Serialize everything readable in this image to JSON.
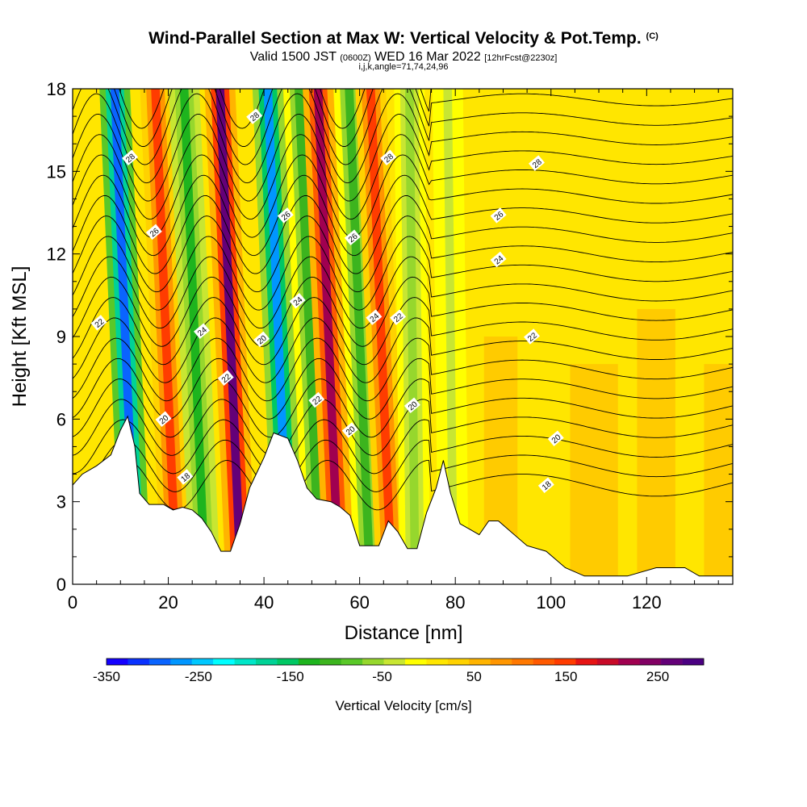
{
  "chart_data": {
    "type": "heatmap",
    "title": "Wind-Parallel Section at Max W: Vertical Velocity & Pot.Temp.",
    "title_mark": "(C)",
    "subtitle_valid": "Valid 1500 JST",
    "subtitle_utc": "(0600Z)",
    "subtitle_date": "WED 16 Mar 2022",
    "subtitle_fcst": "[12hrFcst@2230z]",
    "subtitle2": "i,j,k,angle=71,74,24,96",
    "xlabel": "Distance [nm]",
    "ylabel": "Height [Kft MSL]",
    "xlim": [
      0,
      138
    ],
    "ylim": [
      0,
      18
    ],
    "x_ticks": [
      "0",
      "20",
      "40",
      "60",
      "80",
      "100",
      "120"
    ],
    "y_ticks": [
      "0",
      "3",
      "6",
      "9",
      "12",
      "15",
      "18"
    ],
    "colorbar": {
      "label": "Vertical Velocity [cm/s]",
      "tick_labels": [
        "-350",
        "-250",
        "-150",
        "-50",
        "50",
        "150",
        "250"
      ],
      "range": [
        -350,
        300
      ],
      "colors": [
        "#1400ff",
        "#0a32ff",
        "#0a64ff",
        "#0096ff",
        "#00c8ff",
        "#00ffff",
        "#00e6c8",
        "#00d296",
        "#00c864",
        "#1eb41e",
        "#3cb41e",
        "#5ac828",
        "#96d72d",
        "#c8e632",
        "#ffff00",
        "#ffe600",
        "#ffd200",
        "#ffb400",
        "#ff9600",
        "#ff7800",
        "#ff5a00",
        "#ff3c00",
        "#e61414",
        "#c80a28",
        "#a00050",
        "#820064",
        "#640078",
        "#4b0082"
      ]
    },
    "velocity_bands": [
      {
        "x": 11,
        "value": -300
      },
      {
        "x": 19.5,
        "value": 150
      },
      {
        "x": 25.5,
        "value": -120
      },
      {
        "x": 33,
        "value": 260
      },
      {
        "x": 43,
        "value": -280
      },
      {
        "x": 49.5,
        "value": -100
      },
      {
        "x": 53.5,
        "value": 230
      },
      {
        "x": 60,
        "value": -100
      },
      {
        "x": 64.5,
        "value": 160
      },
      {
        "x": 71,
        "value": -60
      },
      {
        "x": 79,
        "value": -40
      }
    ],
    "theta_contours": [
      {
        "label": "18",
        "label_x": 23.5,
        "label_y": 3.9
      },
      {
        "label": "18",
        "label_x": 99,
        "label_y": 3.6
      },
      {
        "label": "20",
        "label_x": 19,
        "label_y": 6.0
      },
      {
        "label": "20",
        "label_x": 39.5,
        "label_y": 8.9
      },
      {
        "label": "20",
        "label_x": 58,
        "label_y": 5.6
      },
      {
        "label": "20",
        "label_x": 71,
        "label_y": 6.5
      },
      {
        "label": "20",
        "label_x": 101,
        "label_y": 5.3
      },
      {
        "label": "22",
        "label_x": 5.5,
        "label_y": 9.5
      },
      {
        "label": "22",
        "label_x": 32,
        "label_y": 7.5
      },
      {
        "label": "22",
        "label_x": 51,
        "label_y": 6.7
      },
      {
        "label": "22",
        "label_x": 68,
        "label_y": 9.7
      },
      {
        "label": "22",
        "label_x": 96,
        "label_y": 9.0
      },
      {
        "label": "24",
        "label_x": 27,
        "label_y": 9.2
      },
      {
        "label": "24",
        "label_x": 47,
        "label_y": 10.3
      },
      {
        "label": "24",
        "label_x": 63,
        "label_y": 9.7
      },
      {
        "label": "24",
        "label_x": 89,
        "label_y": 11.8
      },
      {
        "label": "26",
        "label_x": 17,
        "label_y": 12.8
      },
      {
        "label": "26",
        "label_x": 44.5,
        "label_y": 13.4
      },
      {
        "label": "26",
        "label_x": 58.5,
        "label_y": 12.6
      },
      {
        "label": "26",
        "label_x": 89,
        "label_y": 13.4
      },
      {
        "label": "28",
        "label_x": 12,
        "label_y": 15.5
      },
      {
        "label": "28",
        "label_x": 38,
        "label_y": 17.0
      },
      {
        "label": "28",
        "label_x": 66,
        "label_y": 15.5
      },
      {
        "label": "28",
        "label_x": 97,
        "label_y": 15.3
      }
    ],
    "terrain": [
      [
        0,
        3.6
      ],
      [
        2,
        4.0
      ],
      [
        5,
        4.3
      ],
      [
        8,
        4.7
      ],
      [
        10,
        5.6
      ],
      [
        11.5,
        6.1
      ],
      [
        13,
        5.0
      ],
      [
        14,
        3.3
      ],
      [
        16,
        2.9
      ],
      [
        19,
        2.9
      ],
      [
        21,
        2.7
      ],
      [
        23,
        2.8
      ],
      [
        25,
        2.7
      ],
      [
        27,
        2.4
      ],
      [
        29,
        1.9
      ],
      [
        31,
        1.2
      ],
      [
        33,
        1.2
      ],
      [
        35,
        2.2
      ],
      [
        37,
        3.5
      ],
      [
        40,
        4.6
      ],
      [
        42,
        5.5
      ],
      [
        45,
        5.3
      ],
      [
        47,
        4.5
      ],
      [
        49,
        3.5
      ],
      [
        51,
        3.1
      ],
      [
        54,
        3.0
      ],
      [
        56,
        2.8
      ],
      [
        58,
        2.5
      ],
      [
        60,
        1.4
      ],
      [
        62,
        1.4
      ],
      [
        64,
        1.4
      ],
      [
        66,
        2.3
      ],
      [
        68,
        1.9
      ],
      [
        70,
        1.3
      ],
      [
        72,
        1.3
      ],
      [
        74,
        2.6
      ],
      [
        76,
        3.5
      ],
      [
        77.5,
        4.5
      ],
      [
        79,
        3.3
      ],
      [
        81,
        2.2
      ],
      [
        83,
        2.0
      ],
      [
        85,
        1.8
      ],
      [
        87,
        2.3
      ],
      [
        89,
        2.3
      ],
      [
        91,
        2.0
      ],
      [
        95,
        1.4
      ],
      [
        99,
        1.2
      ],
      [
        103,
        0.6
      ],
      [
        107,
        0.3
      ],
      [
        116,
        0.3
      ],
      [
        122,
        0.6
      ],
      [
        128,
        0.6
      ],
      [
        131,
        0.3
      ],
      [
        138,
        0.3
      ]
    ]
  }
}
